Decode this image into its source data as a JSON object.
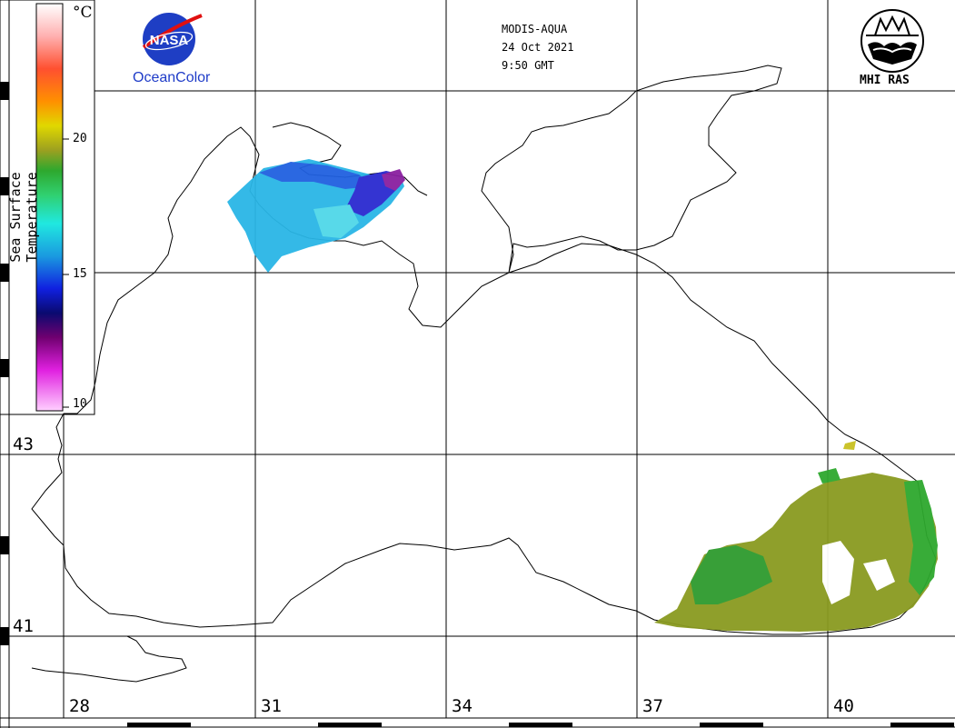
{
  "header": {
    "sensor": "MODIS-AQUA",
    "date": "24 Oct 2021",
    "time": "9:50 GMT"
  },
  "logos": {
    "nasa_text": "NASA",
    "oceancolor_text": "OceanColor",
    "mhi_text": "MHI RAS"
  },
  "colorbar": {
    "title": "Sea Surface Temperature",
    "unit": "°C",
    "ticks": [
      "20",
      "15",
      "10"
    ],
    "tick_values": [
      20,
      15,
      10
    ],
    "range": [
      10,
      25
    ]
  },
  "axes": {
    "longitude_labels": [
      "28",
      "31",
      "34",
      "37",
      "40"
    ],
    "latitude_labels": [
      "43",
      "41"
    ]
  },
  "colors": {
    "coast": "#000000",
    "grid": "#000000",
    "sst_cold": "#8a1fa0",
    "sst_mid": "#2ab6e6",
    "sst_warm": "#8a9a20"
  }
}
